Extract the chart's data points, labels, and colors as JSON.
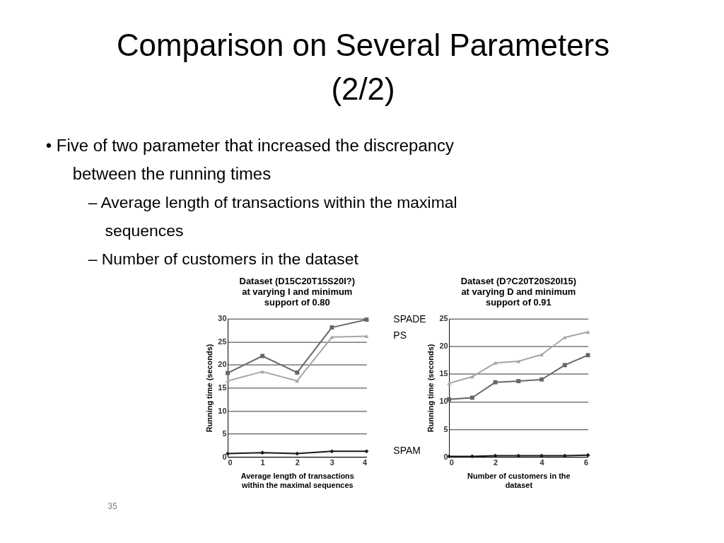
{
  "chart_data": [
    {
      "type": "line",
      "title": "Dataset (D15C20T15S20I?) at varying I and minimum support of 0.80",
      "xlabel": "Average length of transactions within the maximal sequences",
      "ylabel": "Running time (seconds)",
      "xlim": [
        0,
        4
      ],
      "xticks": [
        0,
        1,
        2,
        3,
        4
      ],
      "ylim": [
        0,
        30
      ],
      "yticks": [
        0,
        5,
        10,
        15,
        20,
        25,
        30
      ],
      "x": [
        0,
        1,
        2,
        3,
        4
      ],
      "grid": "y",
      "legend": false,
      "line_style": "solid",
      "annotations": [
        "Comparison on Several Parameters (2/2)",
        "• Five of two parameter that increased the discrepancy between the running times",
        "– Average length of transactions within the maximal sequences",
        "– Number of customers in the dataset",
        "35"
      ],
      "series": [
        {
          "name": "PS",
          "color": "#a6a6a6",
          "marker": "triangle",
          "values": [
            16.5,
            18.5,
            16.5,
            26.0,
            26.2
          ]
        },
        {
          "name": "SPADE",
          "color": "#666666",
          "marker": "square",
          "values": [
            18.2,
            21.9,
            18.3,
            28.1,
            29.8
          ]
        },
        {
          "name": "SPAM",
          "color": "#1a1a1a",
          "marker": "diamond",
          "values": [
            0.7,
            0.9,
            0.7,
            1.2,
            1.2
          ]
        }
      ]
    },
    {
      "type": "line",
      "title": "Dataset (D?C20T20S20I15) at varying D and minimum support of 0.91",
      "xlabel": "Number of customers in the dataset",
      "ylabel": "Running time (seconds)",
      "xlim": [
        0,
        6
      ],
      "xticks": [
        0,
        2,
        4,
        6
      ],
      "ylim": [
        0,
        25
      ],
      "yticks": [
        0,
        5,
        10,
        15,
        20,
        25
      ],
      "x": [
        0,
        1,
        2,
        3,
        4,
        5,
        6
      ],
      "grid": "y",
      "legend": false,
      "line_style": "solid",
      "series": [
        {
          "color": "#a6a6a6",
          "marker": "triangle",
          "values": [
            13.3,
            14.5,
            17.0,
            17.3,
            18.5,
            21.6,
            22.6
          ]
        },
        {
          "color": "#666666",
          "marker": "square",
          "values": [
            10.4,
            10.7,
            13.5,
            13.7,
            14.0,
            16.6,
            18.4
          ]
        },
        {
          "color": "#1a1a1a",
          "marker": "diamond",
          "values": [
            0.1,
            0.1,
            0.2,
            0.2,
            0.2,
            0.2,
            0.3
          ]
        }
      ]
    }
  ]
}
